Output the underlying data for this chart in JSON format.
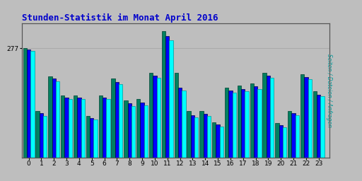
{
  "title": "Stunden-Statistik im Monat April 2016",
  "title_color": "#0000CC",
  "background_color": "#BEBEBE",
  "plot_bg_color": "#BEBEBE",
  "ylabel_right": "Seiten / Dateien / Anfragen",
  "ytick_label": "277",
  "hours": [
    0,
    1,
    2,
    3,
    4,
    5,
    6,
    7,
    8,
    9,
    10,
    11,
    12,
    13,
    14,
    15,
    16,
    17,
    18,
    19,
    20,
    21,
    22,
    23
  ],
  "seiten": [
    277,
    118,
    205,
    158,
    158,
    105,
    158,
    200,
    145,
    148,
    215,
    320,
    215,
    118,
    118,
    90,
    178,
    182,
    188,
    215,
    88,
    118,
    212,
    168
  ],
  "dateien": [
    274,
    112,
    200,
    152,
    152,
    100,
    152,
    192,
    138,
    140,
    208,
    308,
    178,
    108,
    110,
    83,
    170,
    174,
    180,
    208,
    82,
    112,
    204,
    160
  ],
  "anfragen": [
    270,
    106,
    194,
    148,
    148,
    96,
    148,
    186,
    130,
    133,
    203,
    298,
    170,
    102,
    105,
    79,
    164,
    168,
    174,
    202,
    77,
    107,
    198,
    155
  ],
  "color_seiten": "#008060",
  "color_dateien": "#0000FF",
  "color_anfragen": "#00FFFF",
  "edge_seiten": "#004030",
  "edge_dateien": "#000044",
  "edge_anfragen": "#009999",
  "bar_width": 0.3,
  "ylim": [
    0,
    340
  ],
  "yticks": [
    277
  ],
  "grid_color": "#AAAAAA",
  "grid_linewidth": 0.7
}
